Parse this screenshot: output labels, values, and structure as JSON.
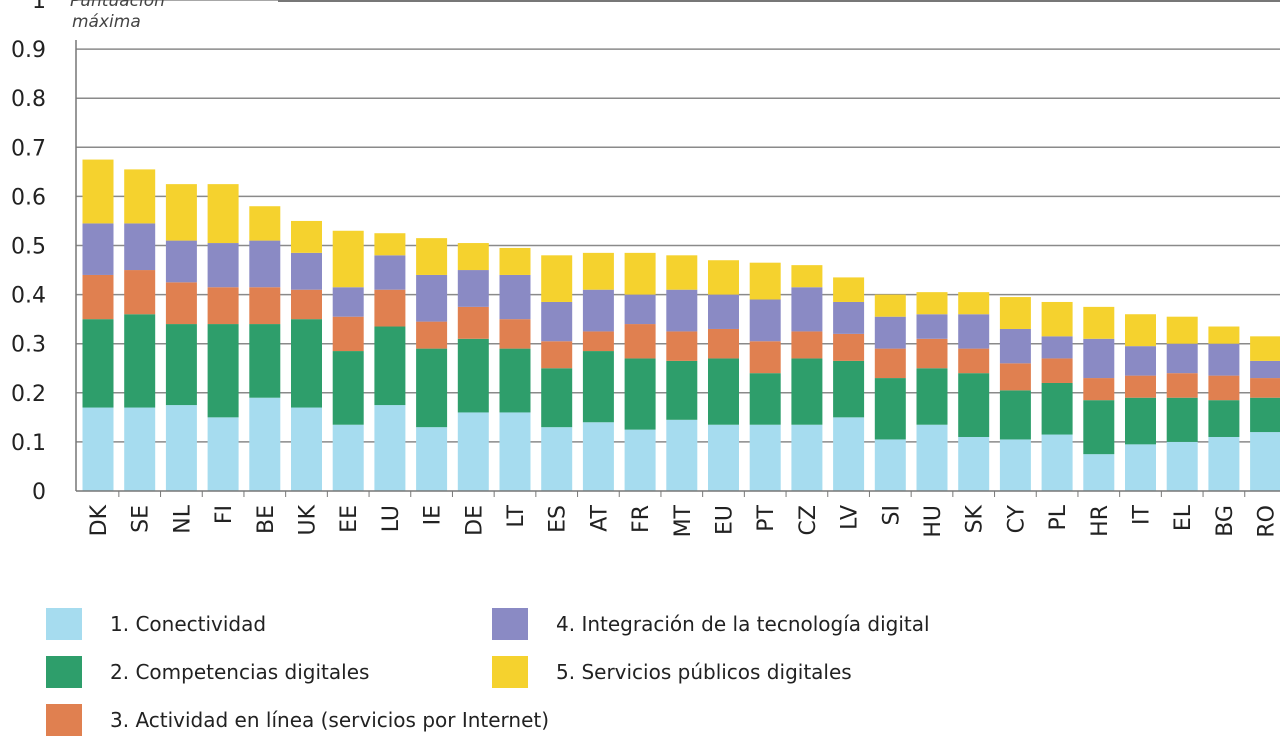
{
  "chart_data": {
    "type": "bar",
    "stacked": true,
    "yaxis_note": [
      "Puntuación",
      "máxima"
    ],
    "ylim": [
      0,
      1
    ],
    "yticks": [
      "0",
      "0.1",
      "0.2",
      "0.3",
      "0.4",
      "0.5",
      "0.6",
      "0.7",
      "0.8",
      "0.9",
      "1"
    ],
    "grid": true,
    "legend_position": "bottom",
    "categories": [
      "DK",
      "SE",
      "NL",
      "FI",
      "BE",
      "UK",
      "EE",
      "LU",
      "IE",
      "DE",
      "LT",
      "ES",
      "AT",
      "FR",
      "MT",
      "EU",
      "PT",
      "CZ",
      "LV",
      "SI",
      "HU",
      "SK",
      "CY",
      "PL",
      "HR",
      "IT",
      "EL",
      "BG",
      "RO"
    ],
    "series": [
      {
        "name": "1. Conectividad",
        "color": "#a6dcef",
        "values": [
          0.17,
          0.17,
          0.175,
          0.15,
          0.19,
          0.17,
          0.135,
          0.175,
          0.13,
          0.16,
          0.16,
          0.13,
          0.14,
          0.125,
          0.145,
          0.135,
          0.135,
          0.135,
          0.15,
          0.105,
          0.135,
          0.11,
          0.105,
          0.115,
          0.075,
          0.095,
          0.1,
          0.11,
          0.12
        ]
      },
      {
        "name": "2. Competencias digitales",
        "color": "#2e9e6b",
        "values": [
          0.18,
          0.19,
          0.165,
          0.19,
          0.15,
          0.18,
          0.15,
          0.16,
          0.16,
          0.15,
          0.13,
          0.12,
          0.145,
          0.145,
          0.12,
          0.135,
          0.105,
          0.135,
          0.115,
          0.125,
          0.115,
          0.13,
          0.1,
          0.105,
          0.11,
          0.095,
          0.09,
          0.075,
          0.07
        ]
      },
      {
        "name": "3. Actividad en línea",
        "color": "#e08050",
        "values": [
          0.09,
          0.09,
          0.085,
          0.075,
          0.075,
          0.06,
          0.07,
          0.075,
          0.055,
          0.065,
          0.06,
          0.055,
          0.04,
          0.07,
          0.06,
          0.06,
          0.065,
          0.055,
          0.055,
          0.06,
          0.06,
          0.05,
          0.055,
          0.05,
          0.045,
          0.045,
          0.05,
          0.05,
          0.04
        ]
      },
      {
        "name": "4. Integración de la tecnología digital",
        "color": "#8a8ac4",
        "values": [
          0.105,
          0.095,
          0.085,
          0.09,
          0.095,
          0.075,
          0.06,
          0.07,
          0.095,
          0.075,
          0.09,
          0.08,
          0.085,
          0.06,
          0.085,
          0.07,
          0.085,
          0.09,
          0.065,
          0.065,
          0.05,
          0.07,
          0.07,
          0.045,
          0.08,
          0.06,
          0.06,
          0.065,
          0.035
        ]
      },
      {
        "name": "5. Servicios públicos digitales",
        "color": "#f5d22e",
        "values": [
          0.13,
          0.11,
          0.115,
          0.12,
          0.07,
          0.065,
          0.115,
          0.045,
          0.075,
          0.055,
          0.055,
          0.095,
          0.075,
          0.085,
          0.07,
          0.07,
          0.075,
          0.045,
          0.05,
          0.045,
          0.045,
          0.045,
          0.065,
          0.07,
          0.065,
          0.065,
          0.055,
          0.035,
          0.05
        ]
      }
    ],
    "legend": [
      {
        "label": "1. Conectividad",
        "color": "#a6dcef"
      },
      {
        "label": "2. Competencias digitales",
        "color": "#2e9e6b"
      },
      {
        "label": "3. Actividad en línea (servicios por Internet)",
        "color": "#e08050"
      },
      {
        "label": "4. Integración de la tecnología digital",
        "color": "#8a8ac4"
      },
      {
        "label": "5. Servicios públicos digitales",
        "color": "#f5d22e"
      }
    ]
  }
}
